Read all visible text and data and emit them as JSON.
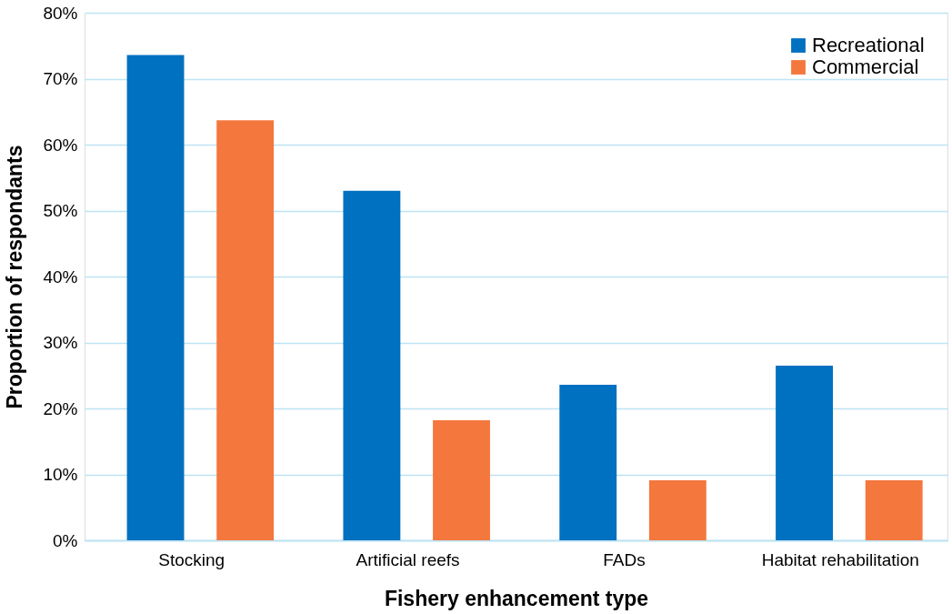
{
  "chart_data": {
    "type": "bar",
    "xlabel": "Fishery enhancement type",
    "ylabel": "Proportion of respondants",
    "categories": [
      "Stocking",
      "Artificial reefs",
      "FADs",
      "Habitat rehabilitation"
    ],
    "series": [
      {
        "name": "Recreational",
        "color": "#0070c0",
        "values": [
          73.6,
          53.0,
          23.6,
          26.5
        ]
      },
      {
        "name": "Commercial",
        "color": "#f4773d",
        "values": [
          63.7,
          18.2,
          9.1,
          9.1
        ]
      }
    ],
    "ylim": [
      0,
      80
    ],
    "yticks": [
      {
        "value": 0,
        "label": "0%"
      },
      {
        "value": 10,
        "label": "10%"
      },
      {
        "value": 20,
        "label": "20%"
      },
      {
        "value": 30,
        "label": "30%"
      },
      {
        "value": 40,
        "label": "40%"
      },
      {
        "value": 50,
        "label": "50%"
      },
      {
        "value": 60,
        "label": "60%"
      },
      {
        "value": 70,
        "label": "70%"
      },
      {
        "value": 80,
        "label": "80%"
      }
    ],
    "grid": "y",
    "legend": "top right"
  }
}
